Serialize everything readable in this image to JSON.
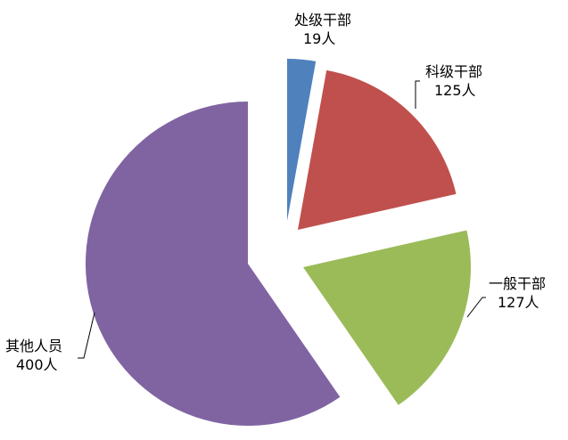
{
  "chart_data": {
    "type": "pie",
    "title": "",
    "exploded": true,
    "slices": [
      {
        "category": "处级干部",
        "value": 19,
        "value_label": "19人",
        "color": "#4F81BD"
      },
      {
        "category": "科级干部",
        "value": 125,
        "value_label": "125人",
        "color": "#C0504D"
      },
      {
        "category": "一般干部",
        "value": 127,
        "value_label": "127人",
        "color": "#9BBB59"
      },
      {
        "category": "其他人员",
        "value": 400,
        "value_label": "400人",
        "color": "#8064A2"
      }
    ]
  }
}
